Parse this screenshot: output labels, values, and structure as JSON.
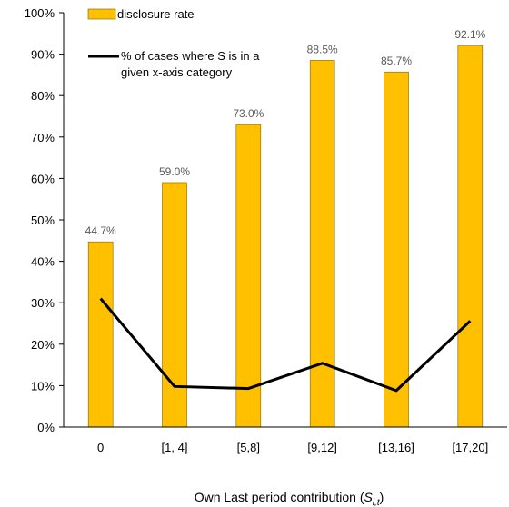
{
  "chart_data": {
    "type": "bar",
    "categories": [
      "0",
      "[1, 4]",
      "[5,8]",
      "[9,12]",
      "[13,16]",
      "[17,20]"
    ],
    "series": [
      {
        "name": "disclosure rate",
        "type": "bar",
        "values": [
          44.7,
          59.0,
          73.0,
          88.5,
          85.7,
          92.1
        ],
        "data_labels": [
          "44.7%",
          "59.0%",
          "73.0%",
          "88.5%",
          "85.7%",
          "92.1%"
        ]
      },
      {
        "name": "% of cases where S is in a given x-axis category",
        "type": "line",
        "values": [
          31.0,
          9.8,
          9.3,
          15.4,
          8.8,
          25.6
        ]
      }
    ],
    "ylim": [
      0,
      100
    ],
    "yticks": [
      0,
      10,
      20,
      30,
      40,
      50,
      60,
      70,
      80,
      90,
      100
    ],
    "ytick_labels": [
      "0%",
      "10%",
      "20%",
      "30%",
      "40%",
      "50%",
      "60%",
      "70%",
      "80%",
      "90%",
      "100%"
    ],
    "xlabel": {
      "text": "Own Last period contribution (",
      "symbol": "S",
      "subscript": "i,t",
      "close": ")"
    },
    "ylabel": "",
    "title": "",
    "grid": false,
    "legend": {
      "placement": "top-left",
      "entries": [
        "disclosure rate",
        "% of cases where S is in a given x-axis category"
      ],
      "line2_wrap": [
        "% of cases where S is in a",
        "given x-axis category"
      ]
    },
    "colors": {
      "bar_fill": "#FFC000",
      "bar_stroke": "#7F6000",
      "line": "#000000",
      "axis": "#000000",
      "data_label": "#595959"
    }
  }
}
